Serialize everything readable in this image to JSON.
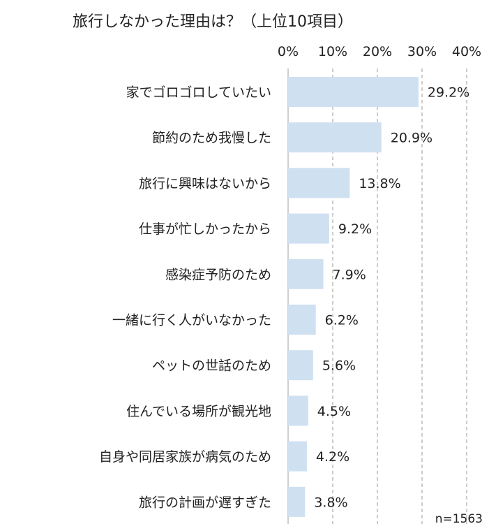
{
  "chart_data": {
    "type": "bar",
    "orientation": "horizontal",
    "title": "旅行しなかった理由は？（上位10項目）",
    "categories": [
      "家でゴロゴロしていたい",
      "節約のため我慢した",
      "旅行に興味はないから",
      "仕事が忙しかったから",
      "感染症予防のため",
      "一緒に行く人がいなかった",
      "ペットの世話のため",
      "住んでいる場所が観光地",
      "自身や同居家族が病気のため",
      "旅行の計画が遅すぎた"
    ],
    "values": [
      29.2,
      20.9,
      13.8,
      9.2,
      7.9,
      6.2,
      5.6,
      4.5,
      4.2,
      3.8
    ],
    "value_labels": [
      "29.2%",
      "20.9%",
      "13.8%",
      "9.2%",
      "7.9%",
      "6.2%",
      "5.6%",
      "4.5%",
      "4.2%",
      "3.8%"
    ],
    "xlim": [
      0,
      40
    ],
    "xticks": [
      0,
      10,
      20,
      30,
      40
    ],
    "xtick_labels": [
      "0%",
      "10%",
      "20%",
      "30%",
      "40%"
    ],
    "grid": true,
    "bar_color": "#cfe0f1",
    "grid_color": "#9a9a9a",
    "axis_color": "#bfbfbf",
    "note": "n=1563"
  }
}
